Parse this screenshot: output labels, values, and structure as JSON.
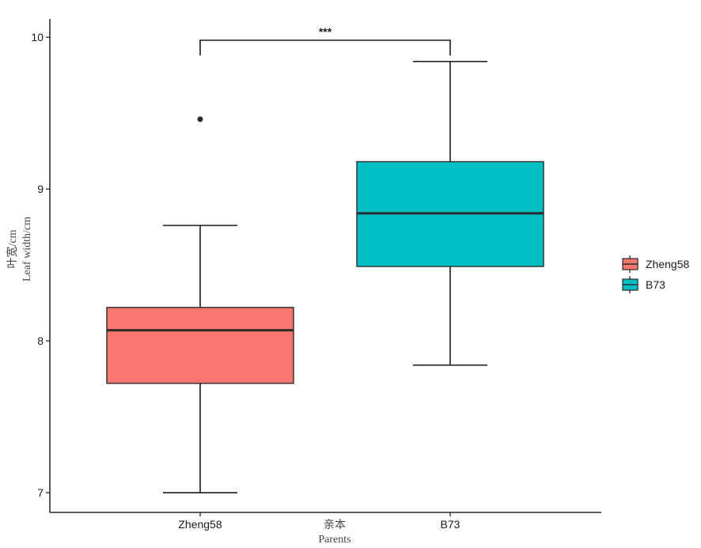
{
  "chart_data": {
    "type": "box",
    "categories": [
      "Zheng58",
      "B73"
    ],
    "xlabel": {
      "cn": "亲本",
      "en": "Parents"
    },
    "ylabel": {
      "cn": "叶宽/cm",
      "en": "Leaf width/cm"
    },
    "ylim": [
      6.87,
      10.12
    ],
    "yticks": [
      7,
      8,
      9,
      10
    ],
    "grid": false,
    "legend_position": "right",
    "series": [
      {
        "name": "Zheng58",
        "color": "#F8766D",
        "whisker_low": 7.0,
        "q1": 7.72,
        "median": 8.07,
        "q3": 8.22,
        "whisker_high": 8.76,
        "outliers": [
          9.46
        ]
      },
      {
        "name": "B73",
        "color": "#00BFC4",
        "whisker_low": 7.84,
        "q1": 8.49,
        "median": 8.84,
        "q3": 9.18,
        "whisker_high": 9.84,
        "outliers": []
      }
    ],
    "significance": {
      "label": "***",
      "y": 9.98,
      "y_drop": 9.88
    }
  }
}
